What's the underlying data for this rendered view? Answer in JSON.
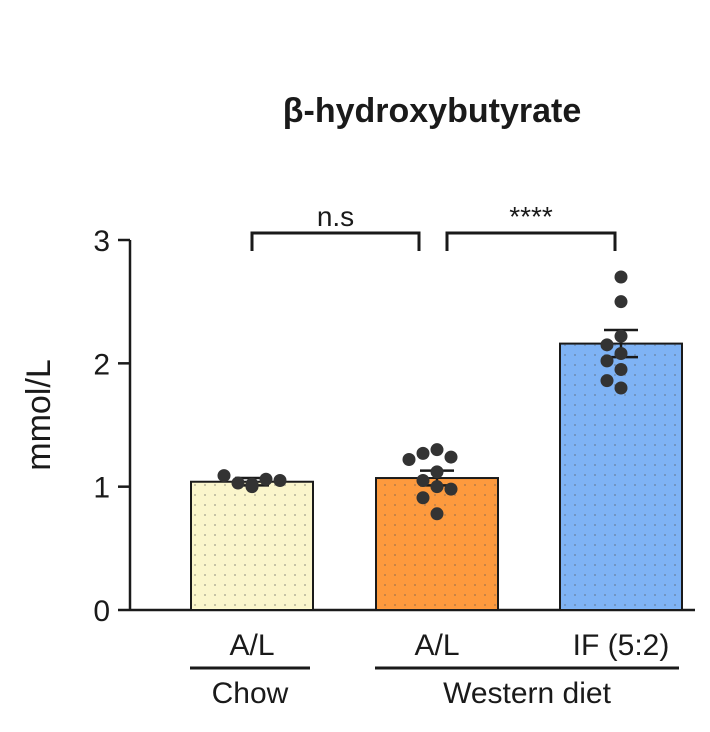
{
  "chart_data": {
    "type": "bar",
    "title": "β-hydroxybutyrate",
    "ylabel": "mmol/L",
    "xlabel": "",
    "ylim": [
      0,
      3
    ],
    "yticks": [
      0,
      1,
      2,
      3
    ],
    "categories": [
      "A/L",
      "A/L",
      "IF (5:2)"
    ],
    "groups": [
      {
        "label": "Chow",
        "categories": [
          0
        ]
      },
      {
        "label": "Western diet",
        "categories": [
          1,
          2
        ]
      }
    ],
    "bars": [
      {
        "value": 1.04,
        "sem": 0.03,
        "color": "#fbf6cc",
        "points": [
          1.0,
          1.03,
          1.06,
          1.09,
          1.05,
          1.02
        ]
      },
      {
        "value": 1.07,
        "sem": 0.06,
        "color": "#fd9a3e",
        "points": [
          1.3,
          1.27,
          1.24,
          1.22,
          1.12,
          1.05,
          1.0,
          0.98,
          0.91,
          0.78
        ]
      },
      {
        "value": 2.16,
        "sem": 0.11,
        "color": "#7fb3f5",
        "points": [
          2.7,
          2.5,
          2.22,
          2.15,
          2.08,
          2.02,
          1.95,
          1.86,
          1.8
        ]
      }
    ],
    "significance": [
      {
        "from": 0,
        "to": 1,
        "label": "n.s"
      },
      {
        "from": 1,
        "to": 2,
        "label": "****"
      }
    ],
    "grid": false
  }
}
